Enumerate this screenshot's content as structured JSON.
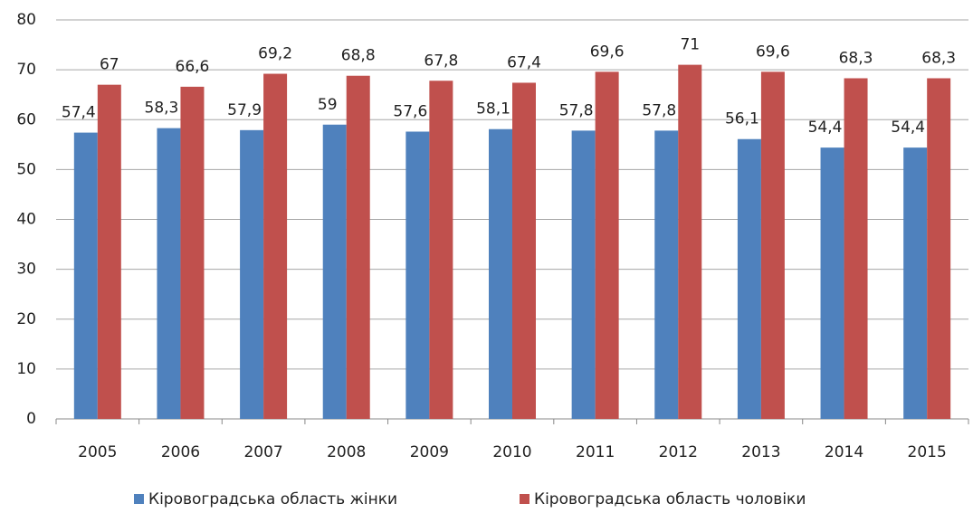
{
  "chart_data": {
    "type": "bar",
    "categories": [
      "2005",
      "2006",
      "2007",
      "2008",
      "2009",
      "2010",
      "2011",
      "2012",
      "2013",
      "2014",
      "2015"
    ],
    "series": [
      {
        "name": "Кіровоградська область жінки",
        "color": "#4f81bd",
        "values": [
          57.4,
          58.3,
          57.9,
          59,
          57.6,
          58.1,
          57.8,
          57.8,
          56.1,
          54.4,
          54.4
        ],
        "value_labels": [
          "57,4",
          "58,3",
          "57,9",
          "59",
          "57,6",
          "58,1",
          "57,8",
          "57,8",
          "56,1",
          "54,4",
          "54,4"
        ]
      },
      {
        "name": "Кіровоградська область чоловіки",
        "color": "#c0504d",
        "values": [
          67,
          66.6,
          69.2,
          68.8,
          67.8,
          67.4,
          69.6,
          71,
          69.6,
          68.3,
          68.3
        ],
        "value_labels": [
          "67",
          "66,6",
          "69,2",
          "68,8",
          "67,8",
          "67,4",
          "69,6",
          "71",
          "69,6",
          "68,3",
          "68,3"
        ]
      }
    ],
    "ylim": [
      0,
      80
    ],
    "yticks": [
      0,
      10,
      20,
      30,
      40,
      50,
      60,
      70,
      80
    ],
    "grid": true,
    "legend": "bottom"
  }
}
